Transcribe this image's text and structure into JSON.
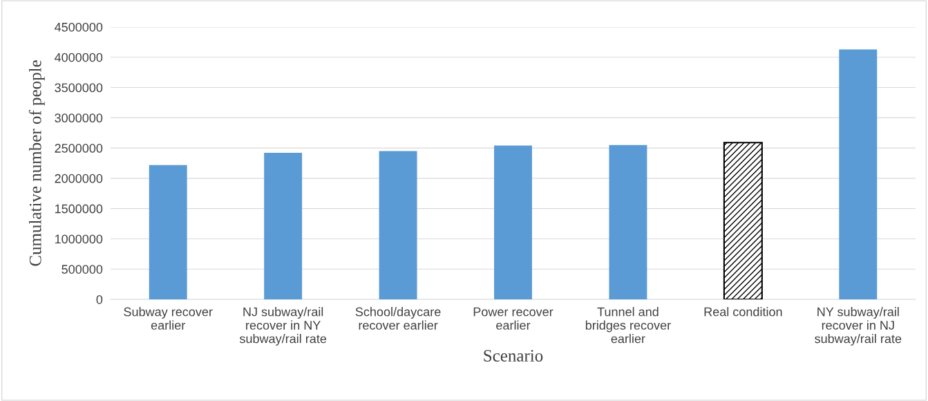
{
  "chart_data": {
    "type": "bar",
    "xlabel": "Scenario",
    "ylabel": "Cumulative number of people",
    "categories": [
      "Subway recover\nearlier",
      "NJ subway/rail\nrecover in NY\nsubway/rail rate",
      "School/daycare\nrecover earlier",
      "Power recover\nearlier",
      "Tunnel and\nbridges recover\nearlier",
      "Real condition",
      "NY subway/rail\nrecover in NJ\nsubway/rail rate"
    ],
    "values": [
      2220000,
      2420000,
      2450000,
      2540000,
      2550000,
      2590000,
      4130000
    ],
    "colors": [
      "#5b9bd5",
      "#5b9bd5",
      "#5b9bd5",
      "#5b9bd5",
      "#5b9bd5",
      "#000000",
      "#5b9bd5"
    ],
    "ylim": [
      0,
      4500000
    ],
    "yticks": [
      0,
      500000,
      1000000,
      1500000,
      2000000,
      2500000,
      3000000,
      3500000,
      4000000,
      4500000
    ],
    "grid": "y"
  }
}
